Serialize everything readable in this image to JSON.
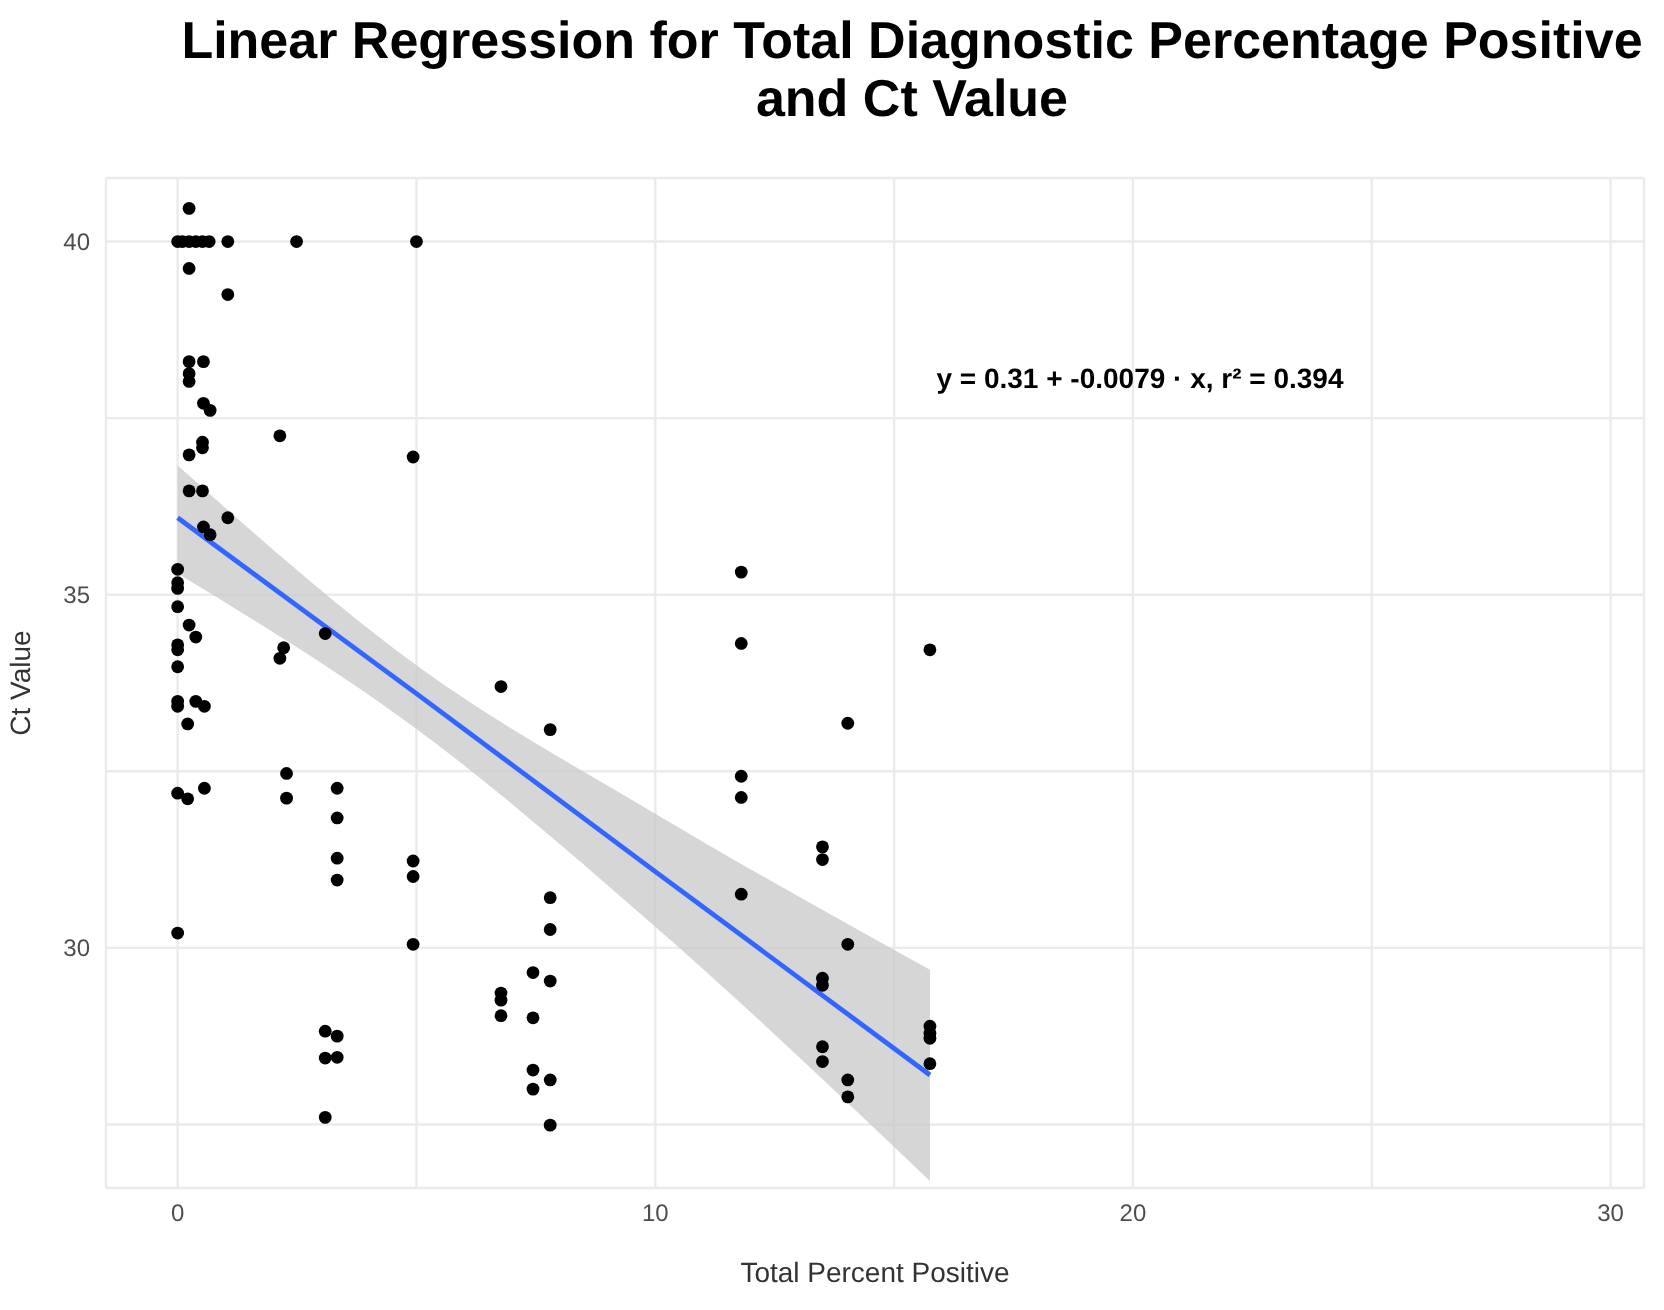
{
  "chart_data": {
    "type": "scatter",
    "title": "Linear Regression for Total Diagnostic Percentage Positive and Ct Value",
    "xlabel": "Total Percent Positive",
    "ylabel": "Ct Value",
    "annotations": [
      "y = 0.31 + -0.0079 · x,  r² = 0.394"
    ],
    "xlim": [
      -1.5,
      30.7
    ],
    "xticks": [
      0,
      {
        "value": 5,
        "label": null
      },
      10,
      {
        "value": 15,
        "label": null
      },
      20,
      {
        "value": 25,
        "label": null
      },
      30
    ],
    "ylim": [
      26.6,
      40.9
    ],
    "yticks": [
      {
        "value": 27.5,
        "label": null
      },
      30,
      {
        "value": 32.5,
        "label": null
      },
      35,
      {
        "value": 37.5,
        "label": null
      },
      40
    ],
    "grid": true,
    "marker": "circle",
    "series": [
      {
        "color": "#000000",
        "x": [
          0.24,
          0,
          0.1,
          0.24,
          0.38,
          0.52,
          0.66,
          1.05,
          2.49,
          5.0,
          0.24,
          1.05,
          0.24,
          0.54,
          0.24,
          0.24,
          0.54,
          0.68,
          2.14,
          0.52,
          0.52,
          0.24,
          4.93,
          0.24,
          0.52,
          1.05,
          0.54,
          0.68,
          0,
          0,
          0,
          0,
          0.24,
          0.38,
          0,
          0,
          0,
          2.14,
          2.22,
          3.09,
          0,
          0,
          0.38,
          0.56,
          0.21,
          6.77,
          7.8,
          0,
          0.21,
          0.56,
          2.28,
          2.28,
          3.34,
          3.34,
          3.34,
          3.34,
          4.93,
          4.93,
          4.93,
          0,
          7.8,
          7.8,
          7.44,
          7.8,
          6.77,
          6.77,
          6.77,
          7.44,
          3.09,
          3.34,
          3.09,
          3.34,
          7.44,
          7.8,
          7.44,
          3.09,
          7.8,
          11.8,
          11.8,
          15.75,
          14.03,
          11.8,
          11.8,
          13.5,
          13.5,
          11.8,
          14.03,
          13.5,
          13.5,
          15.75,
          15.75,
          15.75,
          15.75,
          13.5,
          13.5,
          14.03,
          14.03
        ],
        "values": [
          40.47,
          40,
          40,
          40,
          40,
          40,
          40,
          40,
          40,
          40,
          39.62,
          39.25,
          38.3,
          38.3,
          38.13,
          38.02,
          37.71,
          37.61,
          37.25,
          37.16,
          37.08,
          36.98,
          36.95,
          36.47,
          36.47,
          36.09,
          35.96,
          35.85,
          35.36,
          35.17,
          35.09,
          34.83,
          34.57,
          34.4,
          34.29,
          34.22,
          33.98,
          34.1,
          34.25,
          34.45,
          33.49,
          33.42,
          33.49,
          33.42,
          33.17,
          33.7,
          33.09,
          32.19,
          32.11,
          32.26,
          32.47,
          32.12,
          32.26,
          31.84,
          31.27,
          30.96,
          31.23,
          31.01,
          30.05,
          30.21,
          30.71,
          30.26,
          29.65,
          29.53,
          29.36,
          29.26,
          29.04,
          29.01,
          28.82,
          28.75,
          28.44,
          28.45,
          28.27,
          28.13,
          28.0,
          27.6,
          27.49,
          35.32,
          34.31,
          34.22,
          33.18,
          32.43,
          32.13,
          31.43,
          31.25,
          30.76,
          30.05,
          29.57,
          29.47,
          28.89,
          28.79,
          28.72,
          28.36,
          28.6,
          28.39,
          28.13,
          27.89
        ]
      },
      {
        "type": "line",
        "color": "#3366ff",
        "marker": "none",
        "x": [
          0,
          5,
          10,
          15.75
        ],
        "values": [
          36.09,
          33.6,
          31.08,
          28.2
        ],
        "lower": [
          35.3,
          33.1,
          30.3,
          26.7
        ],
        "upper": [
          36.83,
          34.0,
          31.9,
          29.69
        ]
      }
    ]
  }
}
